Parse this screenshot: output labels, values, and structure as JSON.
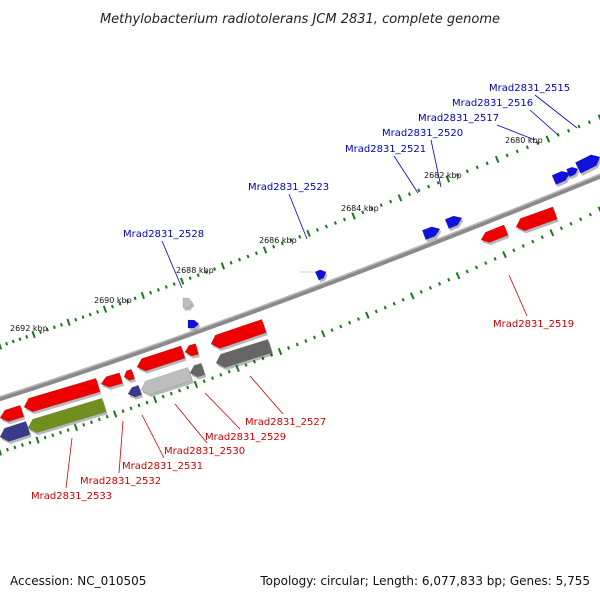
{
  "title": "Methylobacterium radiotolerans JCM 2831, complete genome",
  "footer": {
    "accession": "Accession: NC_010505",
    "summary": "Topology: circular; Length: 6,077,833 bp; Genes: 5,755"
  },
  "colors": {
    "forward_label": "#0000bb",
    "reverse_label": "#cc0000",
    "backbone": "#8a8a8a",
    "tick": "#1a7a1a",
    "gene_red": "#ee0000",
    "gene_blue": "#1111dd",
    "gene_olive": "#6f8f1f",
    "gene_navy": "#3a3a8a",
    "gene_gray": "#8c8c8c",
    "gene_lightgray": "#bdbdbd",
    "gene_darkgray": "#666666"
  },
  "scale_labels": [
    "2680 kbp",
    "2682 kbp",
    "2684 kbp",
    "2686 kbp",
    "2688 kbp",
    "2690 kbp",
    "2692 kbp"
  ],
  "gene_labels": {
    "forward": [
      "Mrad2831_2515",
      "Mrad2831_2516",
      "Mrad2831_2517",
      "Mrad2831_2520",
      "Mrad2831_2521",
      "Mrad2831_2523",
      "Mrad2831_2528"
    ],
    "reverse": [
      "Mrad2831_2519",
      "Mrad2831_2527",
      "Mrad2831_2529",
      "Mrad2831_2530",
      "Mrad2831_2531",
      "Mrad2831_2532",
      "Mrad2831_2533"
    ]
  }
}
